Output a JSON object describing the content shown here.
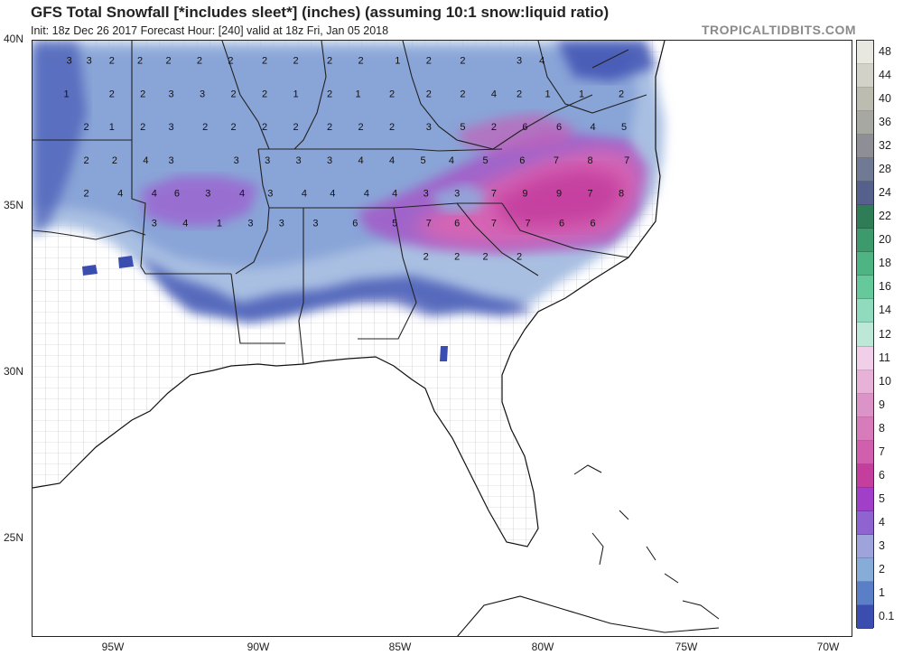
{
  "header": {
    "title": "GFS Total Snowfall [*includes sleet*] (inches) (assuming 10:1 snow:liquid ratio)",
    "subtitle": "Init: 18z Dec 26 2017   Forecast Hour: [240]   valid at 18z Fri, Jan 05 2018",
    "brand": "TROPICALTIDBITS.COM"
  },
  "axes": {
    "lat_labels": [
      "40N",
      "35N",
      "30N",
      "25N"
    ],
    "lon_labels": [
      "95W",
      "90W",
      "85W",
      "80W",
      "75W",
      "70W"
    ]
  },
  "colorbar": {
    "labels": [
      "48",
      "44",
      "40",
      "36",
      "32",
      "28",
      "24",
      "22",
      "20",
      "18",
      "16",
      "14",
      "12",
      "11",
      "10",
      "9",
      "8",
      "7",
      "6",
      "5",
      "4",
      "3",
      "2",
      "1",
      "0.1"
    ],
    "colors": [
      "#e8e8e0",
      "#d2d2c8",
      "#bcbcb0",
      "#a8a8a2",
      "#8e8e96",
      "#707a94",
      "#56608c",
      "#2e7d56",
      "#3d9a6c",
      "#4fb483",
      "#66c99c",
      "#90dbbd",
      "#bde8d8",
      "#f2cfe8",
      "#e8b1d8",
      "#dc94c8",
      "#d77bbb",
      "#d060ae",
      "#c43e9e",
      "#a23fc8",
      "#8f63d0",
      "#9fa3dc",
      "#88acd8",
      "#5b7fc6",
      "#3b4eb0"
    ]
  },
  "map": {
    "legend_entries": "0.1–48 inches",
    "values": [
      {
        "v": "3",
        "lon": -96.7,
        "lat": 39.3
      },
      {
        "v": "3",
        "lon": -96.0,
        "lat": 39.3
      },
      {
        "v": "2",
        "lon": -95.2,
        "lat": 39.3
      },
      {
        "v": "2",
        "lon": -94.2,
        "lat": 39.3
      },
      {
        "v": "2",
        "lon": -93.2,
        "lat": 39.3
      },
      {
        "v": "2",
        "lon": -92.1,
        "lat": 39.3
      },
      {
        "v": "2",
        "lon": -91.0,
        "lat": 39.3
      },
      {
        "v": "2",
        "lon": -89.8,
        "lat": 39.3
      },
      {
        "v": "2",
        "lon": -88.7,
        "lat": 39.3
      },
      {
        "v": "2",
        "lon": -87.5,
        "lat": 39.3
      },
      {
        "v": "2",
        "lon": -86.4,
        "lat": 39.3
      },
      {
        "v": "1",
        "lon": -85.1,
        "lat": 39.3
      },
      {
        "v": "2",
        "lon": -84.0,
        "lat": 39.3
      },
      {
        "v": "2",
        "lon": -82.8,
        "lat": 39.3
      },
      {
        "v": "3",
        "lon": -80.8,
        "lat": 39.3
      },
      {
        "v": "4",
        "lon": -80.0,
        "lat": 39.3
      },
      {
        "v": "1",
        "lon": -96.8,
        "lat": 38.3
      },
      {
        "v": "2",
        "lon": -95.2,
        "lat": 38.3
      },
      {
        "v": "2",
        "lon": -94.1,
        "lat": 38.3
      },
      {
        "v": "3",
        "lon": -93.1,
        "lat": 38.3
      },
      {
        "v": "3",
        "lon": -92.0,
        "lat": 38.3
      },
      {
        "v": "2",
        "lon": -90.9,
        "lat": 38.3
      },
      {
        "v": "2",
        "lon": -89.8,
        "lat": 38.3
      },
      {
        "v": "1",
        "lon": -88.7,
        "lat": 38.3
      },
      {
        "v": "2",
        "lon": -87.5,
        "lat": 38.3
      },
      {
        "v": "1",
        "lon": -86.5,
        "lat": 38.3
      },
      {
        "v": "2",
        "lon": -85.3,
        "lat": 38.3
      },
      {
        "v": "2",
        "lon": -84.0,
        "lat": 38.3
      },
      {
        "v": "2",
        "lon": -82.8,
        "lat": 38.3
      },
      {
        "v": "4",
        "lon": -81.7,
        "lat": 38.3
      },
      {
        "v": "2",
        "lon": -80.8,
        "lat": 38.3
      },
      {
        "v": "1",
        "lon": -79.8,
        "lat": 38.3
      },
      {
        "v": "1",
        "lon": -78.6,
        "lat": 38.3
      },
      {
        "v": "2",
        "lon": -77.2,
        "lat": 38.3
      },
      {
        "v": "2",
        "lon": -96.1,
        "lat": 37.3
      },
      {
        "v": "1",
        "lon": -95.2,
        "lat": 37.3
      },
      {
        "v": "2",
        "lon": -94.1,
        "lat": 37.3
      },
      {
        "v": "3",
        "lon": -93.1,
        "lat": 37.3
      },
      {
        "v": "2",
        "lon": -91.9,
        "lat": 37.3
      },
      {
        "v": "2",
        "lon": -90.9,
        "lat": 37.3
      },
      {
        "v": "2",
        "lon": -89.8,
        "lat": 37.3
      },
      {
        "v": "2",
        "lon": -88.7,
        "lat": 37.3
      },
      {
        "v": "2",
        "lon": -87.5,
        "lat": 37.3
      },
      {
        "v": "2",
        "lon": -86.4,
        "lat": 37.3
      },
      {
        "v": "2",
        "lon": -85.3,
        "lat": 37.3
      },
      {
        "v": "3",
        "lon": -84.0,
        "lat": 37.3
      },
      {
        "v": "5",
        "lon": -82.8,
        "lat": 37.3
      },
      {
        "v": "2",
        "lon": -81.7,
        "lat": 37.3
      },
      {
        "v": "6",
        "lon": -80.6,
        "lat": 37.3
      },
      {
        "v": "6",
        "lon": -79.4,
        "lat": 37.3
      },
      {
        "v": "4",
        "lon": -78.2,
        "lat": 37.3
      },
      {
        "v": "5",
        "lon": -77.1,
        "lat": 37.3
      },
      {
        "v": "2",
        "lon": -96.1,
        "lat": 36.3
      },
      {
        "v": "2",
        "lon": -95.1,
        "lat": 36.3
      },
      {
        "v": "4",
        "lon": -94.0,
        "lat": 36.3
      },
      {
        "v": "3",
        "lon": -93.1,
        "lat": 36.3
      },
      {
        "v": "3",
        "lon": -90.8,
        "lat": 36.3
      },
      {
        "v": "3",
        "lon": -89.7,
        "lat": 36.3
      },
      {
        "v": "3",
        "lon": -88.6,
        "lat": 36.3
      },
      {
        "v": "3",
        "lon": -87.5,
        "lat": 36.3
      },
      {
        "v": "4",
        "lon": -86.4,
        "lat": 36.3
      },
      {
        "v": "4",
        "lon": -85.3,
        "lat": 36.3
      },
      {
        "v": "5",
        "lon": -84.2,
        "lat": 36.3
      },
      {
        "v": "4",
        "lon": -83.2,
        "lat": 36.3
      },
      {
        "v": "5",
        "lon": -82.0,
        "lat": 36.3
      },
      {
        "v": "6",
        "lon": -80.7,
        "lat": 36.3
      },
      {
        "v": "7",
        "lon": -79.5,
        "lat": 36.3
      },
      {
        "v": "8",
        "lon": -78.3,
        "lat": 36.3
      },
      {
        "v": "7",
        "lon": -77.0,
        "lat": 36.3
      },
      {
        "v": "2",
        "lon": -96.1,
        "lat": 35.3
      },
      {
        "v": "4",
        "lon": -94.9,
        "lat": 35.3
      },
      {
        "v": "4",
        "lon": -93.7,
        "lat": 35.3
      },
      {
        "v": "6",
        "lon": -92.9,
        "lat": 35.3
      },
      {
        "v": "3",
        "lon": -91.8,
        "lat": 35.3
      },
      {
        "v": "4",
        "lon": -90.6,
        "lat": 35.3
      },
      {
        "v": "3",
        "lon": -89.6,
        "lat": 35.3
      },
      {
        "v": "4",
        "lon": -88.4,
        "lat": 35.3
      },
      {
        "v": "4",
        "lon": -87.4,
        "lat": 35.3
      },
      {
        "v": "4",
        "lon": -86.2,
        "lat": 35.3
      },
      {
        "v": "4",
        "lon": -85.2,
        "lat": 35.3
      },
      {
        "v": "3",
        "lon": -84.1,
        "lat": 35.3
      },
      {
        "v": "3",
        "lon": -83.0,
        "lat": 35.3
      },
      {
        "v": "7",
        "lon": -81.7,
        "lat": 35.3
      },
      {
        "v": "9",
        "lon": -80.6,
        "lat": 35.3
      },
      {
        "v": "9",
        "lon": -79.4,
        "lat": 35.3
      },
      {
        "v": "7",
        "lon": -78.3,
        "lat": 35.3
      },
      {
        "v": "8",
        "lon": -77.2,
        "lat": 35.3
      },
      {
        "v": "3",
        "lon": -93.7,
        "lat": 34.4
      },
      {
        "v": "4",
        "lon": -92.6,
        "lat": 34.4
      },
      {
        "v": "1",
        "lon": -91.4,
        "lat": 34.4
      },
      {
        "v": "3",
        "lon": -90.3,
        "lat": 34.4
      },
      {
        "v": "3",
        "lon": -89.2,
        "lat": 34.4
      },
      {
        "v": "3",
        "lon": -88.0,
        "lat": 34.4
      },
      {
        "v": "6",
        "lon": -86.6,
        "lat": 34.4
      },
      {
        "v": "5",
        "lon": -85.2,
        "lat": 34.4
      },
      {
        "v": "7",
        "lon": -84.0,
        "lat": 34.4
      },
      {
        "v": "6",
        "lon": -83.0,
        "lat": 34.4
      },
      {
        "v": "7",
        "lon": -81.7,
        "lat": 34.4
      },
      {
        "v": "7",
        "lon": -80.5,
        "lat": 34.4
      },
      {
        "v": "6",
        "lon": -79.3,
        "lat": 34.4
      },
      {
        "v": "6",
        "lon": -78.2,
        "lat": 34.4
      },
      {
        "v": "2",
        "lon": -84.1,
        "lat": 33.4
      },
      {
        "v": "2",
        "lon": -83.0,
        "lat": 33.4
      },
      {
        "v": "2",
        "lon": -82.0,
        "lat": 33.4
      },
      {
        "v": "2",
        "lon": -80.8,
        "lat": 33.4
      }
    ]
  }
}
